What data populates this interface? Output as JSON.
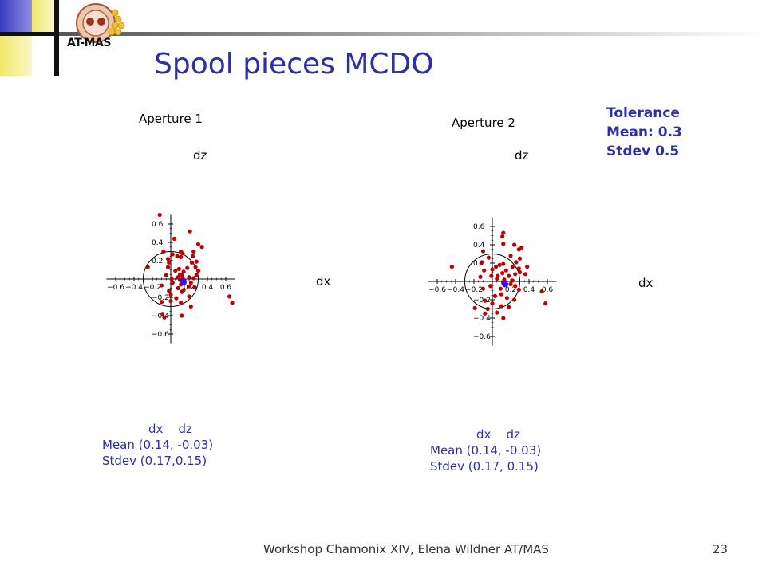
{
  "slide": {
    "title": "Spool pieces MCDO",
    "logo_text": "AT-MAS",
    "footer": "Workshop Chamonix XIV, Elena Wildner AT/MAS",
    "page_number": "23"
  },
  "tolerance": {
    "heading": "Tolerance",
    "mean": "Mean: 0.3",
    "stdev": "Stdev 0.5"
  },
  "colors": {
    "title": "#2e2ea8",
    "points": "#c00000",
    "mean_point": "#1a1aff"
  },
  "panels": [
    {
      "aperture_label": "Aperture 1",
      "x_axis_name": "dx",
      "y_axis_name": "dz",
      "stats_header": "dx    dz",
      "stats_mean": "Mean (0.14, -0.03)",
      "stats_stdev": "Stdev (0.17,0.15)"
    },
    {
      "aperture_label": "Aperture 2",
      "x_axis_name": "dx",
      "y_axis_name": "dz",
      "stats_header": "dx    dz",
      "stats_mean": "Mean (0.14, -0.03)",
      "stats_stdev": "Stdev (0.17, 0.15)"
    }
  ],
  "chart_data": [
    {
      "type": "scatter",
      "title": "Aperture 1",
      "xlabel": "dx",
      "ylabel": "dz",
      "xlim": [
        -0.7,
        0.7
      ],
      "ylim": [
        -0.7,
        0.7
      ],
      "x_ticks": [
        -0.6,
        -0.4,
        -0.2,
        0.2,
        0.4,
        0.6
      ],
      "y_ticks": [
        -0.6,
        -0.4,
        -0.2,
        0.2,
        0.4,
        0.6
      ],
      "tick_labels": {
        "-0.6": "−0.6",
        "-0.4": "−0.4",
        "-0.2": "−0.2",
        "0.2": "0.2",
        "0.4": "0.4",
        "0.6": "0.6"
      },
      "circle_radius": 0.3,
      "mean": [
        0.14,
        -0.03
      ],
      "points": [
        [
          -0.12,
          0.7
        ],
        [
          0.04,
          0.44
        ],
        [
          0.21,
          0.52
        ],
        [
          0.3,
          0.38
        ],
        [
          0.34,
          0.35
        ],
        [
          0.25,
          0.3
        ],
        [
          0.02,
          0.27
        ],
        [
          0.11,
          0.3
        ],
        [
          0.07,
          0.25
        ],
        [
          -0.08,
          0.3
        ],
        [
          -0.03,
          0.22
        ],
        [
          0.13,
          0.28
        ],
        [
          0.11,
          0.24
        ],
        [
          0.24,
          0.25
        ],
        [
          -0.02,
          0.18
        ],
        [
          0.23,
          0.18
        ],
        [
          0.28,
          0.19
        ],
        [
          -0.03,
          0.13
        ],
        [
          0.18,
          0.12
        ],
        [
          0.27,
          0.13
        ],
        [
          -0.25,
          0.13
        ],
        [
          0.09,
          0.11
        ],
        [
          0.05,
          0.09
        ],
        [
          0.14,
          0.08
        ],
        [
          0.3,
          0.09
        ],
        [
          0.1,
          0.05
        ],
        [
          0.28,
          0.04
        ],
        [
          0.12,
          0.04
        ],
        [
          -0.05,
          0.04
        ],
        [
          0.2,
          0.02
        ],
        [
          0.08,
          0.02
        ],
        [
          0.13,
          0.01
        ],
        [
          0.25,
          0.01
        ],
        [
          0.01,
          0.0
        ],
        [
          0.1,
          -0.01
        ],
        [
          0.15,
          -0.03
        ],
        [
          0.22,
          -0.04
        ],
        [
          0.02,
          -0.04
        ],
        [
          0.11,
          -0.06
        ],
        [
          -0.1,
          -0.07
        ],
        [
          0.2,
          -0.08
        ],
        [
          0.26,
          -0.09
        ],
        [
          0.08,
          -0.1
        ],
        [
          0.14,
          -0.12
        ],
        [
          -0.02,
          -0.13
        ],
        [
          0.12,
          -0.14
        ],
        [
          0.0,
          -0.17
        ],
        [
          0.2,
          -0.19
        ],
        [
          0.64,
          -0.19
        ],
        [
          0.67,
          -0.26
        ],
        [
          0.06,
          -0.21
        ],
        [
          0.0,
          -0.24
        ],
        [
          0.11,
          -0.26
        ],
        [
          -0.1,
          -0.25
        ],
        [
          0.22,
          -0.3
        ],
        [
          0.12,
          -0.4
        ],
        [
          -0.07,
          -0.42
        ],
        [
          -0.09,
          -0.38
        ]
      ]
    },
    {
      "type": "scatter",
      "title": "Aperture 2",
      "xlabel": "dx",
      "ylabel": "dz",
      "xlim": [
        -0.7,
        0.7
      ],
      "ylim": [
        -0.7,
        0.7
      ],
      "x_ticks": [
        -0.6,
        -0.4,
        -0.2,
        0.2,
        0.4,
        0.6
      ],
      "y_ticks": [
        -0.6,
        -0.4,
        -0.2,
        0.2,
        0.4,
        0.6
      ],
      "tick_labels": {
        "-0.6": "−0.6",
        "-0.4": "−0.4",
        "-0.2": "−0.2",
        "0.2": "0.2",
        "0.4": "0.4",
        "0.6": "0.6"
      },
      "circle_radius": 0.3,
      "mean": [
        0.14,
        -0.03
      ],
      "points": [
        [
          0.12,
          0.53
        ],
        [
          0.11,
          0.49
        ],
        [
          0.12,
          0.41
        ],
        [
          0.24,
          0.4
        ],
        [
          0.32,
          0.37
        ],
        [
          0.29,
          0.35
        ],
        [
          -0.1,
          0.33
        ],
        [
          0.2,
          0.28
        ],
        [
          0.3,
          0.25
        ],
        [
          0.26,
          0.21
        ],
        [
          -0.04,
          0.26
        ],
        [
          0.12,
          0.19
        ],
        [
          0.22,
          0.16
        ],
        [
          0.08,
          0.18
        ],
        [
          0.04,
          0.16
        ],
        [
          -0.44,
          0.16
        ],
        [
          -0.12,
          0.2
        ],
        [
          -0.09,
          0.12
        ],
        [
          0.29,
          0.14
        ],
        [
          0.38,
          0.16
        ],
        [
          0.15,
          0.12
        ],
        [
          0.11,
          0.09
        ],
        [
          0.0,
          0.13
        ],
        [
          0.3,
          0.1
        ],
        [
          0.25,
          0.08
        ],
        [
          0.36,
          0.08
        ],
        [
          -0.01,
          0.06
        ],
        [
          0.06,
          0.06
        ],
        [
          0.18,
          0.06
        ],
        [
          -0.13,
          0.05
        ],
        [
          0.05,
          0.03
        ],
        [
          0.13,
          0.02
        ],
        [
          0.22,
          0.01
        ],
        [
          0.12,
          -0.02
        ],
        [
          0.2,
          -0.03
        ],
        [
          0.25,
          -0.05
        ],
        [
          -0.02,
          -0.05
        ],
        [
          0.09,
          -0.08
        ],
        [
          -0.1,
          -0.08
        ],
        [
          0.29,
          -0.09
        ],
        [
          0.54,
          -0.11
        ],
        [
          0.1,
          -0.14
        ],
        [
          0.03,
          -0.16
        ],
        [
          0.16,
          -0.18
        ],
        [
          0.24,
          -0.2
        ],
        [
          -0.08,
          -0.21
        ],
        [
          0.0,
          -0.24
        ],
        [
          0.1,
          -0.27
        ],
        [
          0.18,
          -0.28
        ],
        [
          -0.05,
          -0.3
        ],
        [
          0.58,
          -0.24
        ],
        [
          -0.19,
          -0.29
        ],
        [
          0.05,
          -0.34
        ],
        [
          0.12,
          -0.4
        ],
        [
          -0.08,
          -0.35
        ]
      ]
    }
  ]
}
